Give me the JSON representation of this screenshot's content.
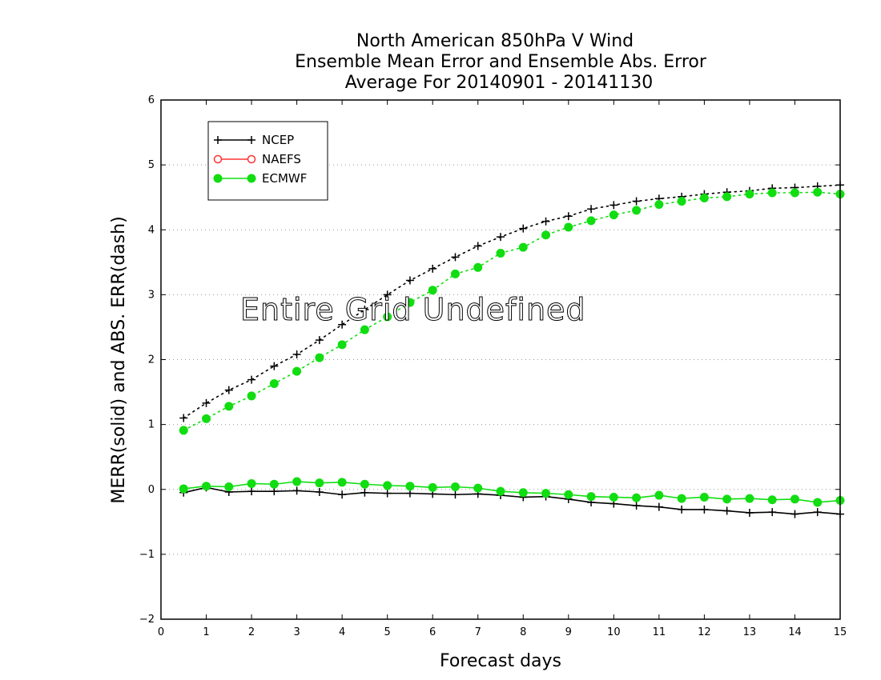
{
  "chart_data": {
    "type": "line",
    "title": [
      "North American 850hPa V Wind",
      "Ensemble Mean Error and Ensemble Abs. Error",
      "Average For 20140901 - 20141130"
    ],
    "xlabel": "Forecast days",
    "ylabel": "MERR(solid) and ABS. ERR(dash)",
    "xlim": [
      0,
      15
    ],
    "ylim": [
      -2,
      6
    ],
    "xticks": [
      "0",
      "1",
      "2",
      "3",
      "4",
      "5",
      "6",
      "7",
      "8",
      "9",
      "10",
      "11",
      "12",
      "13",
      "14",
      "15"
    ],
    "yticks": [
      "−2",
      "−1",
      "0",
      "1",
      "2",
      "3",
      "4",
      "5",
      "6"
    ],
    "grid": "horizontal dotted",
    "legend_position": "top-left",
    "annotation": "Entire Grid Undefined",
    "x": [
      0.5,
      1,
      1.5,
      2,
      2.5,
      3,
      3.5,
      4,
      4.5,
      5,
      5.5,
      6,
      6.5,
      7,
      7.5,
      8,
      8.5,
      9,
      9.5,
      10,
      10.5,
      11,
      11.5,
      12,
      12.5,
      13,
      13.5,
      14,
      14.5,
      15
    ],
    "series": [
      {
        "name": "NCEP",
        "color": "#000000",
        "marker": "plus",
        "abs_error": [
          1.1,
          1.33,
          1.53,
          1.69,
          1.9,
          2.08,
          2.3,
          2.54,
          2.77,
          3.0,
          3.22,
          3.4,
          3.58,
          3.75,
          3.89,
          4.02,
          4.13,
          4.21,
          4.32,
          4.38,
          4.44,
          4.48,
          4.51,
          4.55,
          4.58,
          4.6,
          4.64,
          4.65,
          4.67,
          4.69
        ],
        "mean_error": [
          -0.05,
          0.03,
          -0.04,
          -0.03,
          -0.03,
          -0.02,
          -0.04,
          -0.08,
          -0.05,
          -0.06,
          -0.06,
          -0.07,
          -0.08,
          -0.07,
          -0.09,
          -0.12,
          -0.11,
          -0.15,
          -0.2,
          -0.22,
          -0.25,
          -0.27,
          -0.31,
          -0.31,
          -0.33,
          -0.36,
          -0.35,
          -0.38,
          -0.35,
          -0.38
        ]
      },
      {
        "name": "NAEFS",
        "color": "#ff3333",
        "marker": "open-circle",
        "abs_error": [],
        "mean_error": []
      },
      {
        "name": "ECMWF",
        "color": "#11dd11",
        "marker": "filled-circle",
        "abs_error": [
          0.91,
          1.09,
          1.28,
          1.44,
          1.63,
          1.82,
          2.03,
          2.23,
          2.46,
          2.66,
          2.88,
          3.07,
          3.32,
          3.42,
          3.64,
          3.73,
          3.92,
          4.04,
          4.14,
          4.23,
          4.3,
          4.39,
          4.44,
          4.49,
          4.51,
          4.55,
          4.57,
          4.57,
          4.58,
          4.55
        ],
        "mean_error": [
          0.01,
          0.05,
          0.04,
          0.09,
          0.08,
          0.12,
          0.1,
          0.11,
          0.08,
          0.06,
          0.05,
          0.03,
          0.04,
          0.02,
          -0.03,
          -0.05,
          -0.06,
          -0.08,
          -0.11,
          -0.12,
          -0.13,
          -0.09,
          -0.14,
          -0.12,
          -0.15,
          -0.14,
          -0.16,
          -0.15,
          -0.2,
          -0.17
        ]
      }
    ]
  }
}
